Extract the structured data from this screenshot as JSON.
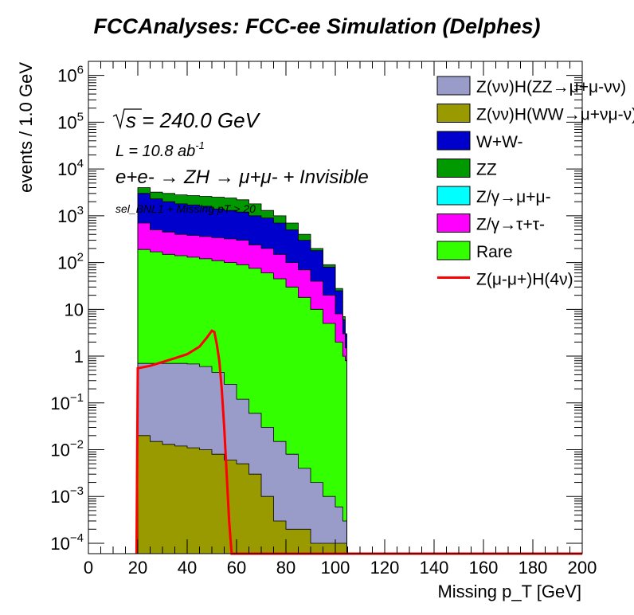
{
  "title": "FCCAnalyses: FCC-ee Simulation (Delphes)",
  "chart_data": {
    "type": "area",
    "stacked": true,
    "log_y": true,
    "xlabel": "Missing p_T [GeV]",
    "ylabel": "events / 1.0 GeV",
    "xlim": [
      0,
      200
    ],
    "ylim": [
      6e-05,
      2000000
    ],
    "x_ticks": [
      "0",
      "20",
      "40",
      "60",
      "80",
      "100",
      "120",
      "140",
      "160",
      "180",
      "200"
    ],
    "y_ticks": [
      {
        "label": "10^-4",
        "v": 0.0001
      },
      {
        "label": "10^-3",
        "v": 0.001
      },
      {
        "label": "10^-2",
        "v": 0.01
      },
      {
        "label": "10^-1",
        "v": 0.1
      },
      {
        "label": "1",
        "v": 1
      },
      {
        "label": "10",
        "v": 10
      },
      {
        "label": "10^2",
        "v": 100
      },
      {
        "label": "10^3",
        "v": 1000
      },
      {
        "label": "10^4",
        "v": 10000
      },
      {
        "label": "10^5",
        "v": 100000
      },
      {
        "label": "10^6",
        "v": 1000000
      }
    ],
    "annotations": {
      "energy": "= 240.0 GeV",
      "energy_prefix": "s",
      "lumi": "L = 10.8 ab",
      "lumi_exp": "-1",
      "process": "e+e- → ZH → μ+μ- + Invisible",
      "selection": "sel_BNL1 + Missing pT > 20"
    },
    "x": [
      20,
      25,
      30,
      35,
      40,
      45,
      50,
      55,
      60,
      65,
      70,
      75,
      80,
      85,
      90,
      95,
      100,
      103,
      104
    ],
    "series": [
      {
        "name": "Z(νν)H(ZZ→μ+μ-νν)",
        "color": "#999bc9",
        "stack_top": [
          0.7,
          0.7,
          0.7,
          0.7,
          0.68,
          0.6,
          0.45,
          0.25,
          0.12,
          0.06,
          0.03,
          0.015,
          0.008,
          0.004,
          0.002,
          0.001,
          0.0006,
          0.0003,
          0.0003
        ]
      },
      {
        "name": "Z(νν)H(WW→μ+νμ-ν)",
        "color": "#999900",
        "stack_top": [
          0.02,
          0.015,
          0.013,
          0.012,
          0.011,
          0.01,
          0.008,
          0.006,
          0.005,
          0.003,
          0.001,
          0.0003,
          0.0002,
          0.0002,
          0.0001,
          0.0001,
          0.0001,
          0.0001,
          0.0001
        ]
      },
      {
        "name": "W+W-",
        "color": "#0000cc",
        "stack_top": [
          3000,
          2300,
          2000,
          1800,
          1700,
          1600,
          1400,
          1300,
          1200,
          1000,
          900,
          700,
          500,
          300,
          180,
          80,
          25,
          6,
          3
        ]
      },
      {
        "name": "ZZ",
        "color": "#009900",
        "stack_top": [
          4000,
          3200,
          3000,
          2800,
          2700,
          2600,
          2500,
          2400,
          2200,
          1800,
          1300,
          1000,
          700,
          400,
          200,
          90,
          28,
          7,
          3
        ]
      },
      {
        "name": "Z/γ→μ+μ-",
        "color": "#00ffff",
        "stack_top": []
      },
      {
        "name": "Z/γ→τ+τ-",
        "color": "#ff00ff",
        "stack_top": [
          700,
          500,
          450,
          400,
          380,
          360,
          340,
          320,
          300,
          240,
          200,
          150,
          100,
          70,
          40,
          20,
          8,
          3,
          1.5
        ]
      },
      {
        "name": "Rare",
        "color": "#33ff00",
        "stack_top": [
          190,
          170,
          150,
          140,
          130,
          120,
          110,
          100,
          90,
          75,
          60,
          45,
          30,
          18,
          10,
          5,
          2,
          1,
          0.8
        ]
      },
      {
        "name": "Z(μ-μ+)H(4ν)",
        "color": "#ff0000",
        "style": "line",
        "x": [
          19.5,
          20,
          25,
          30,
          35,
          40,
          45,
          48,
          50,
          51,
          52,
          53,
          54,
          55,
          56,
          57,
          58,
          60,
          80,
          104
        ],
        "y": [
          6e-05,
          0.55,
          0.62,
          0.75,
          0.9,
          1.1,
          1.6,
          2.5,
          3.5,
          3.3,
          1.8,
          0.8,
          0.2,
          0.03,
          0.003,
          0.0003,
          6e-05,
          6e-05,
          6e-05,
          6e-05
        ]
      }
    ],
    "legend_position": "top-right"
  }
}
